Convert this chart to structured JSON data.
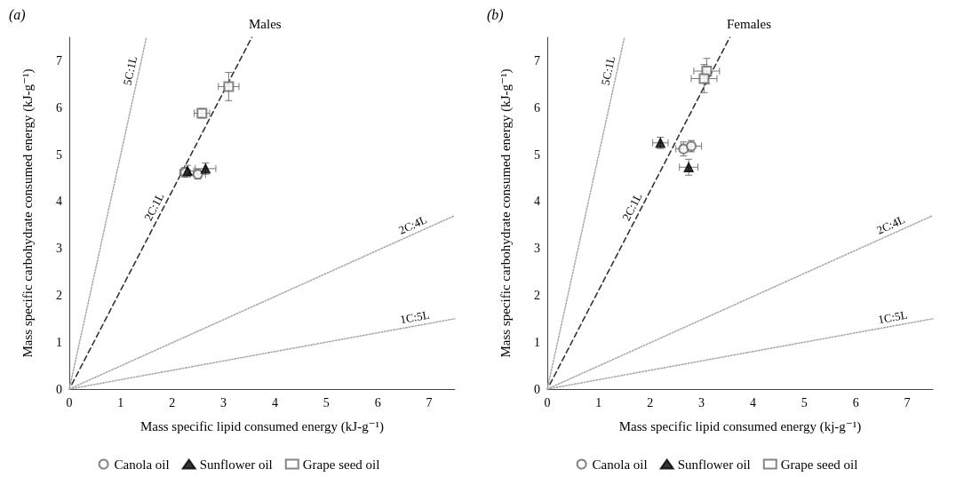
{
  "chart_data": [
    {
      "type": "scatter",
      "title": "Males",
      "annotations": [
        "(a)"
      ],
      "xlabel": "Mass specific lipid consumed energy (kJ-g⁻¹)",
      "ylabel": "Mass specific carbohydrate consumed energy (kJ-g⁻¹)",
      "xlim": [
        0,
        7.5
      ],
      "ylim": [
        0,
        7.5
      ],
      "xticks": [
        0,
        1,
        2,
        3,
        4,
        5,
        6,
        7
      ],
      "yticks": [
        0,
        1,
        2,
        3,
        4,
        5,
        6,
        7
      ],
      "grid": false,
      "legend": "bottom",
      "series": [
        {
          "name": "Canola oil",
          "color": "#666666",
          "marker": "circle",
          "x": [
            2.25,
            2.5
          ],
          "values": [
            4.62,
            4.58
          ],
          "errors": [
            0.1,
            0.1
          ],
          "xerrors": [
            0.1,
            0.15
          ]
        },
        {
          "name": "Sunflower oil",
          "color": "#000000",
          "marker": "triangle",
          "x": [
            2.3,
            2.65
          ],
          "values": [
            4.65,
            4.7
          ],
          "errors": [
            0.12,
            0.12
          ],
          "xerrors": [
            0.12,
            0.2
          ]
        },
        {
          "name": "Grape seed oil",
          "color": "#666666",
          "marker": "square",
          "x": [
            2.58,
            3.1
          ],
          "values": [
            5.88,
            6.45
          ],
          "errors": [
            0.1,
            0.3
          ],
          "xerrors": [
            0.15,
            0.2
          ]
        },
        {
          "type": "line",
          "name": "5C:1L",
          "color": "#aaaaaa",
          "line_style": "dotted",
          "marker": "none",
          "x": [
            0,
            1.5
          ],
          "values": [
            0,
            7.5
          ]
        },
        {
          "type": "line",
          "name": "2C:1L",
          "color": "#333333",
          "line_style": "dashed",
          "marker": "none",
          "x": [
            0.05,
            3.55
          ],
          "values": [
            0.1,
            7.5
          ]
        },
        {
          "type": "line",
          "name": "2C:4L",
          "color": "#aaaaaa",
          "line_style": "dotted",
          "marker": "none",
          "x": [
            0,
            7.5
          ],
          "values": [
            0,
            3.7
          ]
        },
        {
          "type": "line",
          "name": "1C:5L",
          "color": "#aaaaaa",
          "line_style": "dotted",
          "marker": "none",
          "x": [
            0,
            7.5
          ],
          "values": [
            0,
            1.5
          ]
        }
      ]
    },
    {
      "type": "scatter",
      "title": "Females",
      "annotations": [
        "(b)"
      ],
      "xlabel": "Mass specific lipid consumed energy (kj-g⁻¹)",
      "ylabel": "Mass specific carbohydrate consumed energy (kJ-g⁻¹)",
      "xlim": [
        0,
        7.5
      ],
      "ylim": [
        0,
        7.5
      ],
      "xticks": [
        0,
        1,
        2,
        3,
        4,
        5,
        6,
        7
      ],
      "yticks": [
        0,
        1,
        2,
        3,
        4,
        5,
        6,
        7
      ],
      "grid": false,
      "legend": "bottom",
      "series": [
        {
          "name": "Canola oil",
          "color": "#666666",
          "marker": "circle",
          "x": [
            2.65,
            2.8
          ],
          "values": [
            5.12,
            5.18
          ],
          "errors": [
            0.15,
            0.12
          ],
          "xerrors": [
            0.15,
            0.2
          ]
        },
        {
          "name": "Sunflower oil",
          "color": "#000000",
          "marker": "triangle",
          "x": [
            2.2,
            2.75
          ],
          "values": [
            5.25,
            4.73
          ],
          "errors": [
            0.12,
            0.17
          ],
          "xerrors": [
            0.15,
            0.18
          ]
        },
        {
          "name": "Grape seed oil",
          "color": "#666666",
          "marker": "square",
          "x": [
            3.1,
            3.05
          ],
          "values": [
            6.78,
            6.62
          ],
          "errors": [
            0.27,
            0.3
          ],
          "xerrors": [
            0.25,
            0.25
          ]
        },
        {
          "type": "line",
          "name": "5C:1L",
          "color": "#aaaaaa",
          "line_style": "dotted",
          "marker": "none",
          "x": [
            0,
            1.5
          ],
          "values": [
            0,
            7.5
          ]
        },
        {
          "type": "line",
          "name": "2C:1L",
          "color": "#333333",
          "line_style": "dashed",
          "marker": "none",
          "x": [
            0.05,
            3.55
          ],
          "values": [
            0.1,
            7.5
          ]
        },
        {
          "type": "line",
          "name": "2C:4L",
          "color": "#aaaaaa",
          "line_style": "dotted",
          "marker": "none",
          "x": [
            0,
            7.5
          ],
          "values": [
            0,
            3.7
          ]
        },
        {
          "type": "line",
          "name": "1C:5L",
          "color": "#aaaaaa",
          "line_style": "dotted",
          "marker": "none",
          "x": [
            0,
            7.5
          ],
          "values": [
            0,
            1.5
          ]
        }
      ]
    }
  ]
}
